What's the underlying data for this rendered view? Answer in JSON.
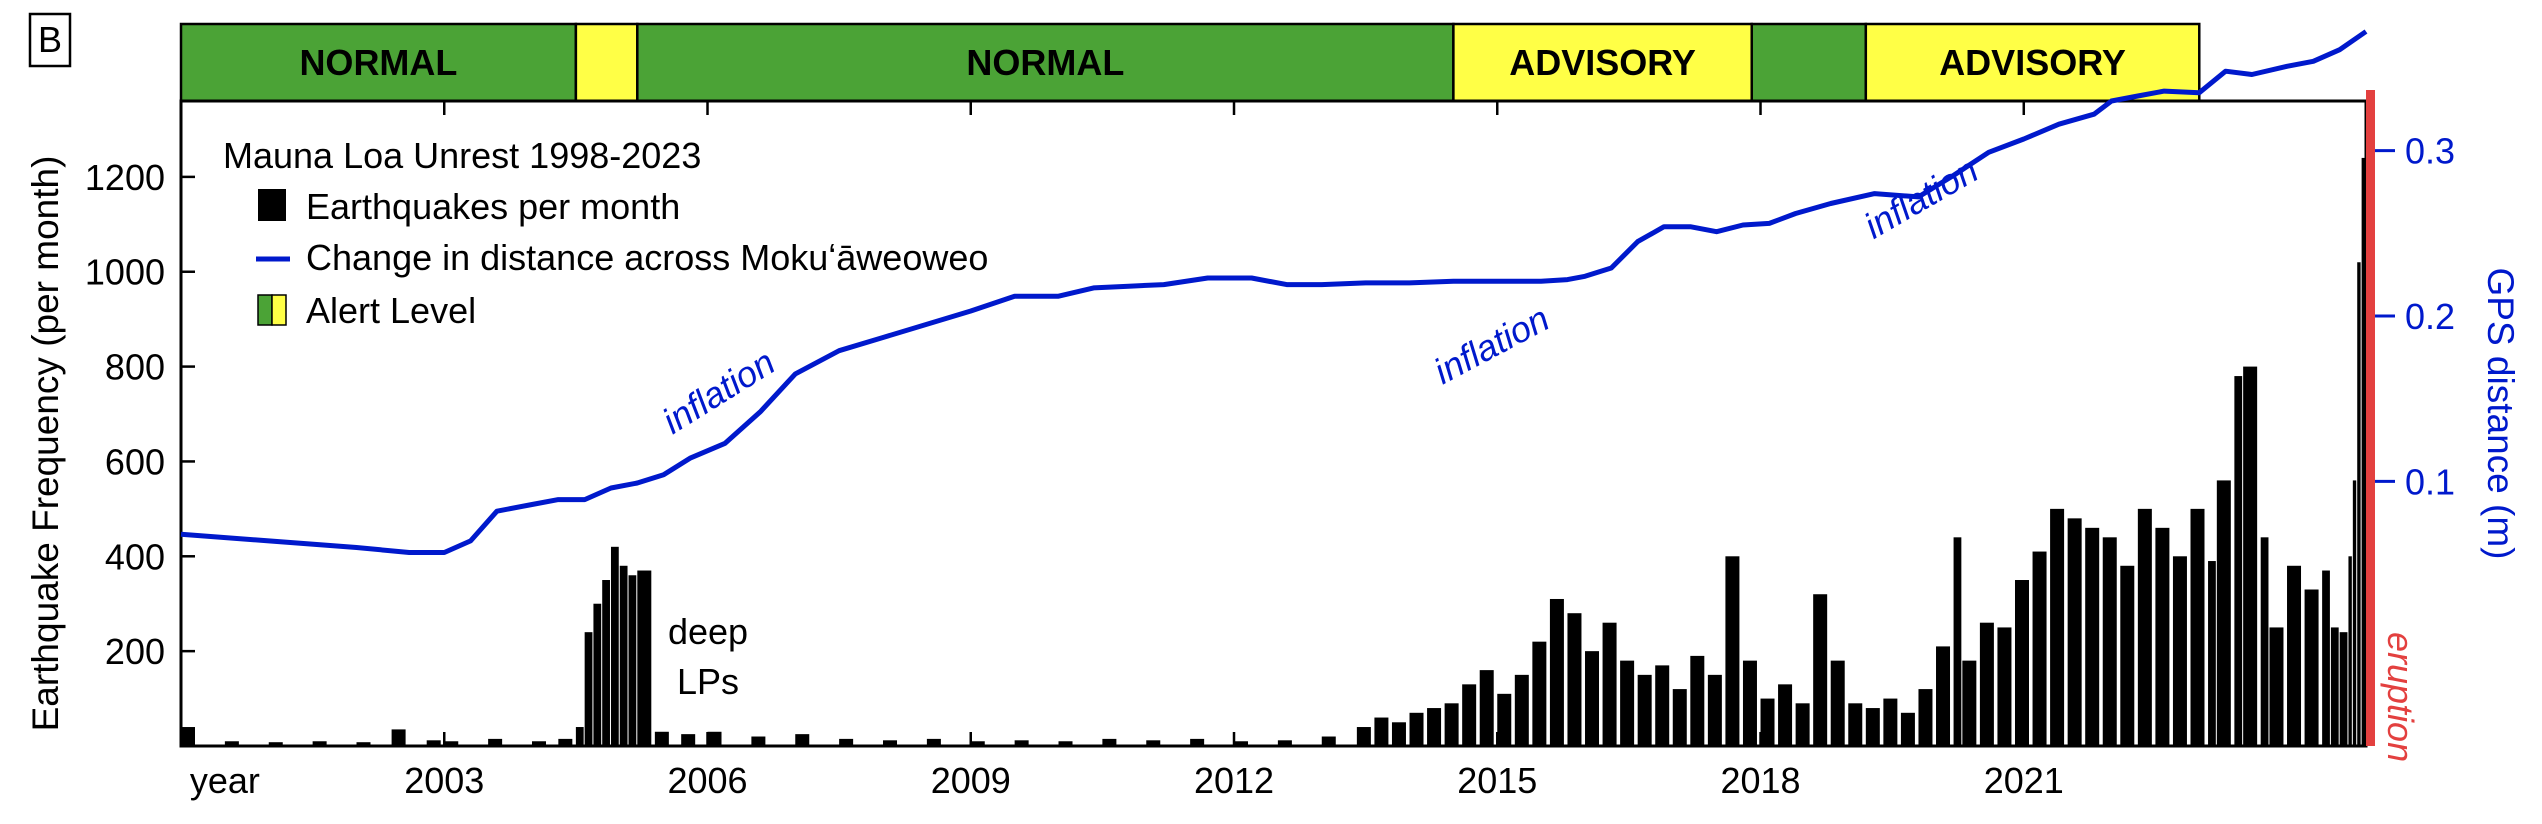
{
  "panel_label": "B",
  "alert_bar": {
    "segments": [
      {
        "label": "NORMAL",
        "level": "normal",
        "start": 1998.0,
        "end": 2002.5
      },
      {
        "label": "",
        "level": "advisory",
        "start": 2002.5,
        "end": 2003.2
      },
      {
        "label": "NORMAL",
        "level": "normal",
        "start": 2003.2,
        "end": 2012.5
      },
      {
        "label": "ADVISORY",
        "level": "advisory",
        "start": 2012.5,
        "end": 2015.9
      },
      {
        "label": "",
        "level": "normal",
        "start": 2015.9,
        "end": 2017.2
      },
      {
        "label": "ADVISORY",
        "level": "advisory",
        "start": 2017.2,
        "end": 2021.0
      }
    ],
    "colors": {
      "normal": "#4ba336",
      "advisory": "#ffff46"
    }
  },
  "legend": {
    "title": "Mauna Loa Unrest 1998-2023",
    "items": [
      {
        "label": "Earthquakes per month",
        "kind": "bar",
        "color": "#000000"
      },
      {
        "label": "Change in distance across Mokuʻāweoweo",
        "kind": "line",
        "color": "#0019cc"
      },
      {
        "label": "Alert Level",
        "kind": "alert",
        "color": "#4ba336"
      }
    ]
  },
  "annotations": {
    "deep_lps_line1": "deep",
    "deep_lps_line2": "LPs",
    "inflation_labels": [
      {
        "text": "inflation",
        "x": 2004.2,
        "y_gps": 0.148
      },
      {
        "text": "inflation",
        "x": 2013.0,
        "y_gps": 0.176
      },
      {
        "text": "inflation",
        "x": 2017.9,
        "y_gps": 0.265
      }
    ],
    "eruption": {
      "text": "eruption",
      "x": 2022.9,
      "color": "#e3403f"
    }
  },
  "chart_data": {
    "type": "bar",
    "x_range": [
      1998.0,
      2022.9
    ],
    "x_ticks": [
      {
        "label": "year",
        "value": 1998.5
      },
      {
        "label": "2003",
        "value": 2001.0
      },
      {
        "label": "2006",
        "value": 2004.0
      },
      {
        "label": "2009",
        "value": 2007.0
      },
      {
        "label": "2012",
        "value": 2010.0
      },
      {
        "label": "2015",
        "value": 2013.0
      },
      {
        "label": "2018",
        "value": 2016.0
      },
      {
        "label": "2021",
        "value": 2019.0
      }
    ],
    "y_left": {
      "label": "Earthquake Frequency (per month)",
      "range": [
        0,
        1360
      ],
      "ticks": [
        200,
        400,
        600,
        800,
        1000,
        1200
      ]
    },
    "y_right": {
      "label": "GPS distance (m)",
      "range": [
        -0.06,
        0.33
      ],
      "ticks": [
        0.1,
        0.2,
        0.3
      ],
      "tick_labels": [
        "0.1",
        "0.2",
        "0.3"
      ]
    },
    "series": [
      {
        "name": "Earthquakes per month",
        "type": "bar",
        "points": [
          [
            1998.0,
            40
          ],
          [
            1998.5,
            10
          ],
          [
            1999.0,
            8
          ],
          [
            1999.5,
            10
          ],
          [
            2000.0,
            8
          ],
          [
            2000.4,
            35
          ],
          [
            2000.8,
            12
          ],
          [
            2001.0,
            10
          ],
          [
            2001.5,
            15
          ],
          [
            2002.0,
            10
          ],
          [
            2002.3,
            15
          ],
          [
            2002.5,
            40
          ],
          [
            2002.6,
            240
          ],
          [
            2002.7,
            300
          ],
          [
            2002.8,
            350
          ],
          [
            2002.9,
            420
          ],
          [
            2003.0,
            380
          ],
          [
            2003.1,
            360
          ],
          [
            2003.2,
            370
          ],
          [
            2003.4,
            30
          ],
          [
            2003.7,
            25
          ],
          [
            2004.0,
            30
          ],
          [
            2004.5,
            20
          ],
          [
            2005.0,
            25
          ],
          [
            2005.5,
            15
          ],
          [
            2006.0,
            12
          ],
          [
            2006.5,
            15
          ],
          [
            2007.0,
            10
          ],
          [
            2007.5,
            12
          ],
          [
            2008.0,
            10
          ],
          [
            2008.5,
            15
          ],
          [
            2009.0,
            12
          ],
          [
            2009.5,
            15
          ],
          [
            2010.0,
            10
          ],
          [
            2010.5,
            12
          ],
          [
            2011.0,
            20
          ],
          [
            2011.4,
            40
          ],
          [
            2011.6,
            60
          ],
          [
            2011.8,
            50
          ],
          [
            2012.0,
            70
          ],
          [
            2012.2,
            80
          ],
          [
            2012.4,
            90
          ],
          [
            2012.6,
            130
          ],
          [
            2012.8,
            160
          ],
          [
            2013.0,
            110
          ],
          [
            2013.2,
            150
          ],
          [
            2013.4,
            220
          ],
          [
            2013.6,
            310
          ],
          [
            2013.8,
            280
          ],
          [
            2014.0,
            200
          ],
          [
            2014.2,
            260
          ],
          [
            2014.4,
            180
          ],
          [
            2014.6,
            150
          ],
          [
            2014.8,
            170
          ],
          [
            2015.0,
            120
          ],
          [
            2015.2,
            190
          ],
          [
            2015.4,
            150
          ],
          [
            2015.6,
            400
          ],
          [
            2015.8,
            180
          ],
          [
            2016.0,
            100
          ],
          [
            2016.2,
            130
          ],
          [
            2016.4,
            90
          ],
          [
            2016.6,
            320
          ],
          [
            2016.8,
            180
          ],
          [
            2017.0,
            90
          ],
          [
            2017.2,
            80
          ],
          [
            2017.4,
            100
          ],
          [
            2017.6,
            70
          ],
          [
            2017.8,
            120
          ],
          [
            2018.0,
            210
          ],
          [
            2018.2,
            440
          ],
          [
            2018.3,
            180
          ],
          [
            2018.5,
            260
          ],
          [
            2018.7,
            250
          ],
          [
            2018.9,
            350
          ],
          [
            2019.1,
            410
          ],
          [
            2019.3,
            500
          ],
          [
            2019.5,
            480
          ],
          [
            2019.7,
            460
          ],
          [
            2019.9,
            440
          ],
          [
            2020.1,
            380
          ],
          [
            2020.3,
            500
          ],
          [
            2020.5,
            460
          ],
          [
            2020.7,
            400
          ],
          [
            2020.9,
            500
          ],
          [
            2021.1,
            390
          ],
          [
            2021.2,
            560
          ],
          [
            2021.4,
            780
          ],
          [
            2021.5,
            800
          ],
          [
            2021.7,
            440
          ],
          [
            2021.8,
            250
          ],
          [
            2022.0,
            380
          ],
          [
            2022.2,
            330
          ],
          [
            2022.4,
            370
          ],
          [
            2022.5,
            250
          ],
          [
            2022.6,
            240
          ],
          [
            2022.7,
            400
          ],
          [
            2022.75,
            560
          ],
          [
            2022.8,
            1020
          ],
          [
            2022.85,
            1240
          ],
          [
            2022.9,
            1250
          ]
        ]
      },
      {
        "name": "Change in distance across Mokuʻāweoweo",
        "type": "line",
        "axis": "right",
        "points": [
          [
            1998.0,
            0.068
          ],
          [
            1999.0,
            0.064
          ],
          [
            2000.0,
            0.06
          ],
          [
            2000.6,
            0.057
          ],
          [
            2001.0,
            0.057
          ],
          [
            2001.3,
            0.064
          ],
          [
            2001.6,
            0.082
          ],
          [
            2002.0,
            0.086
          ],
          [
            2002.3,
            0.089
          ],
          [
            2002.6,
            0.089
          ],
          [
            2002.9,
            0.096
          ],
          [
            2003.2,
            0.099
          ],
          [
            2003.5,
            0.104
          ],
          [
            2003.8,
            0.114
          ],
          [
            2004.2,
            0.123
          ],
          [
            2004.6,
            0.142
          ],
          [
            2005.0,
            0.165
          ],
          [
            2005.5,
            0.179
          ],
          [
            2006.0,
            0.187
          ],
          [
            2007.0,
            0.203
          ],
          [
            2007.5,
            0.212
          ],
          [
            2008.0,
            0.212
          ],
          [
            2008.4,
            0.217
          ],
          [
            2008.8,
            0.218
          ],
          [
            2009.2,
            0.219
          ],
          [
            2009.7,
            0.223
          ],
          [
            2010.2,
            0.223
          ],
          [
            2010.6,
            0.219
          ],
          [
            2011.0,
            0.219
          ],
          [
            2011.5,
            0.22
          ],
          [
            2012.0,
            0.22
          ],
          [
            2012.5,
            0.221
          ],
          [
            2013.0,
            0.221
          ],
          [
            2013.5,
            0.221
          ],
          [
            2013.8,
            0.222
          ],
          [
            2014.0,
            0.224
          ],
          [
            2014.3,
            0.229
          ],
          [
            2014.6,
            0.245
          ],
          [
            2014.9,
            0.254
          ],
          [
            2015.2,
            0.254
          ],
          [
            2015.5,
            0.251
          ],
          [
            2015.8,
            0.255
          ],
          [
            2016.1,
            0.256
          ],
          [
            2016.4,
            0.262
          ],
          [
            2016.8,
            0.268
          ],
          [
            2017.3,
            0.274
          ],
          [
            2017.8,
            0.272
          ],
          [
            2018.2,
            0.285
          ],
          [
            2018.6,
            0.299
          ],
          [
            2019.0,
            0.307
          ],
          [
            2019.4,
            0.316
          ],
          [
            2019.8,
            0.322
          ],
          [
            2020.0,
            0.33
          ],
          [
            2020.3,
            0.333
          ],
          [
            2020.6,
            0.336
          ],
          [
            2021.0,
            0.335
          ],
          [
            2021.3,
            0.348
          ],
          [
            2021.6,
            0.346
          ],
          [
            2022.0,
            0.351
          ],
          [
            2022.3,
            0.354
          ],
          [
            2022.6,
            0.361
          ],
          [
            2022.9,
            0.372
          ]
        ]
      }
    ]
  }
}
